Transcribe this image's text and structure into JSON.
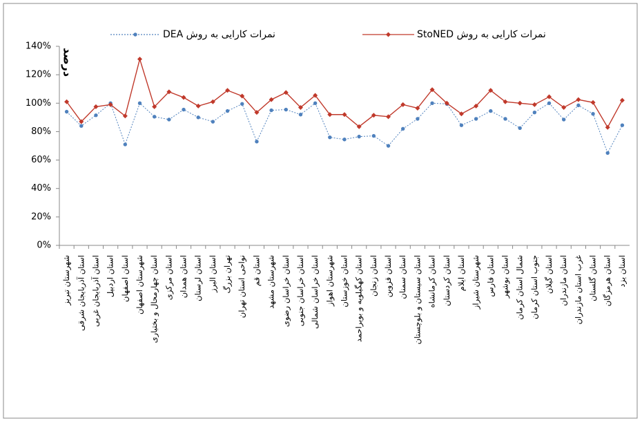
{
  "chart_data": {
    "type": "line",
    "y_title": "درصد",
    "legend": "top",
    "grid": false,
    "categories": [
      "شهرستان تبریز",
      "استان آذربایجان شرقی",
      "استان آذربایجان غربی",
      "استان اردبیل",
      "استان اصفهان",
      "شهرستان اصفهان",
      "استان چهارمحال و بختیاری",
      "استان مرکزی",
      "استان همدان",
      "استان لرستان",
      "استان البرز",
      "تهران بزرگ",
      "نواحی استان تهران",
      "استان قم",
      "شهرستان مشهد",
      "استان خراسان رضوی",
      "استان خراسان جنوبی",
      "استان خراسان شمالی",
      "شهرستان اهواز",
      "استان خوزستان",
      "استان کهگیلویه و بویراحمد",
      "استان زنجان",
      "استان قزوین",
      "استان سمنان",
      "استان سیستان و بلوچستان",
      "استان کرمانشاه",
      "استان کردستان",
      "استان ایلام",
      "شهرستان شیراز",
      "استان فارس",
      "استان بوشهر",
      "شمال استان کرمان",
      "جنوب استان کرمان",
      "استان گیلان",
      "استان مازندران",
      "غرب استان مازندران",
      "استان گلستان",
      "استان هرمزگان",
      "استان یزد"
    ],
    "series": [
      {
        "name": "نمرات کارایی به روش DEA",
        "color": "#4f81bd",
        "marker": "circle",
        "values": [
          94,
          84,
          91.5,
          100,
          71,
          100,
          90.5,
          88.5,
          95.5,
          90,
          87,
          94.5,
          99.5,
          73,
          95,
          95.5,
          92,
          100,
          76,
          74.5,
          76.5,
          77,
          70,
          82,
          89,
          100,
          99.5,
          84.5,
          89,
          94.5,
          89,
          82.5,
          93.5,
          100,
          88.5,
          98.5,
          92.5,
          65,
          84.5
        ]
      },
      {
        "name": "نمرات کارایی به روش StoNED",
        "color": "#c0392b",
        "marker": "diamond",
        "values": [
          101,
          87,
          97.5,
          99,
          91,
          131,
          97.5,
          108,
          104,
          98,
          101,
          109,
          105,
          93.5,
          102.5,
          107.5,
          97,
          105.5,
          92,
          92,
          83.5,
          91.5,
          90.5,
          99,
          96.5,
          109.5,
          100,
          92.5,
          98,
          109,
          101,
          100,
          99,
          104.5,
          97,
          102.5,
          100.5,
          83,
          102
        ]
      }
    ],
    "ylim": [
      0,
      140
    ],
    "yticks": [
      {
        "value": 0,
        "label": "0%"
      },
      {
        "value": 20,
        "label": "20%"
      },
      {
        "value": 40,
        "label": "40%"
      },
      {
        "value": 60,
        "label": "60%"
      },
      {
        "value": 80,
        "label": "80%"
      },
      {
        "value": 100,
        "label": "100%"
      },
      {
        "value": 120,
        "label": "120%"
      },
      {
        "value": 140,
        "label": "140%"
      }
    ]
  }
}
